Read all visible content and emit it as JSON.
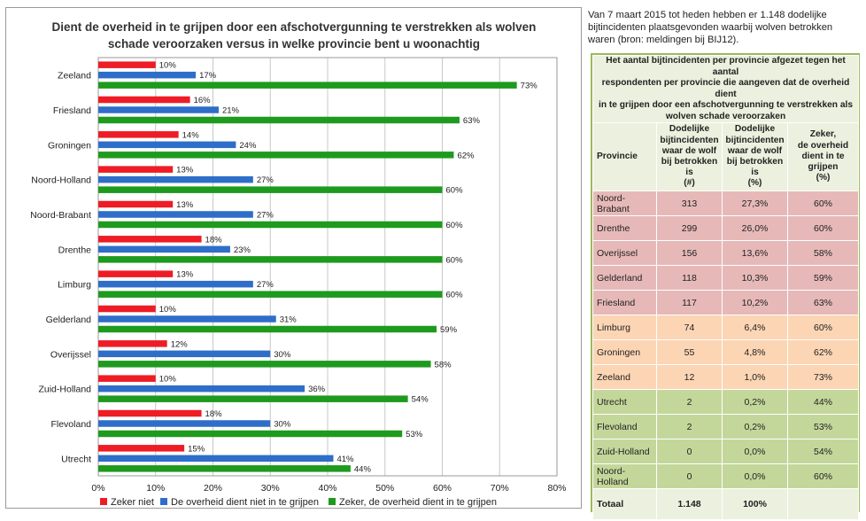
{
  "chart_data": {
    "type": "bar",
    "orientation": "horizontal",
    "title_lines": [
      "Dient de overheid in te grijpen door een afschotvergunning te verstrekken als wolven",
      "schade veroorzaken versus in welke provincie bent u woonachtig"
    ],
    "categories": [
      "Zeeland",
      "Friesland",
      "Groningen",
      "Noord-Holland",
      "Noord-Brabant",
      "Drenthe",
      "Limburg",
      "Gelderland",
      "Overijssel",
      "Zuid-Holland",
      "Flevoland",
      "Utrecht"
    ],
    "series": [
      {
        "name": "Zeker niet",
        "color": "#ee1c25",
        "values": [
          10,
          16,
          14,
          13,
          13,
          18,
          13,
          10,
          12,
          10,
          18,
          15
        ]
      },
      {
        "name": "De overheid dient niet in te grijpen",
        "color": "#2e6ec9",
        "values": [
          17,
          21,
          24,
          27,
          27,
          23,
          27,
          31,
          30,
          36,
          30,
          41
        ]
      },
      {
        "name": "Zeker, de overheid dient in te grijpen",
        "color": "#1e9a1e",
        "values": [
          73,
          63,
          62,
          60,
          60,
          60,
          60,
          59,
          58,
          54,
          53,
          44
        ]
      }
    ],
    "value_suffix": "%",
    "xlim": [
      0,
      80
    ],
    "x_ticks": [
      "0%",
      "10%",
      "20%",
      "30%",
      "40%",
      "50%",
      "60%",
      "70%",
      "80%"
    ],
    "x_tick_values": [
      0,
      10,
      20,
      30,
      40,
      50,
      60,
      70,
      80
    ],
    "grid": true,
    "legend_position": "bottom"
  },
  "side_note": {
    "lines": [
      "Van 7 maart 2015 tot heden hebben er 1.148 dodelijke",
      "bijtincidenten plaatsgevonden waarbij wolven betrokken",
      "waren (bron: meldingen bij BIJ12)."
    ]
  },
  "table": {
    "caption_lines": [
      "Het aantal bijtincidenten per provincie afgezet tegen het aantal",
      "respondenten per provincie die aangeven dat de overheid dient",
      "in te grijpen door een afschotvergunning te verstrekken als",
      "wolven schade veroorzaken"
    ],
    "headers": {
      "provincie": "Provincie",
      "col1": [
        "Dodelijke",
        "bijtincidenten",
        "waar de wolf",
        "bij betrokken is",
        "(#)"
      ],
      "col2": [
        "Dodelijke",
        "bijtincidenten",
        "waar de wolf",
        "bij betrokken is",
        "(%)"
      ],
      "col3": [
        "Zeker,",
        "de overheid",
        "dient in te",
        "grijpen",
        "(%)"
      ]
    },
    "rows": [
      {
        "provincie": "Noord-Brabant",
        "count": "313",
        "pct": "27,3%",
        "zeker": "60%",
        "color": "red"
      },
      {
        "provincie": "Drenthe",
        "count": "299",
        "pct": "26,0%",
        "zeker": "60%",
        "color": "red"
      },
      {
        "provincie": "Overijssel",
        "count": "156",
        "pct": "13,6%",
        "zeker": "58%",
        "color": "red"
      },
      {
        "provincie": "Gelderland",
        "count": "118",
        "pct": "10,3%",
        "zeker": "59%",
        "color": "red"
      },
      {
        "provincie": "Friesland",
        "count": "117",
        "pct": "10,2%",
        "zeker": "63%",
        "color": "red"
      },
      {
        "provincie": "Limburg",
        "count": "74",
        "pct": "6,4%",
        "zeker": "60%",
        "color": "orange"
      },
      {
        "provincie": "Groningen",
        "count": "55",
        "pct": "4,8%",
        "zeker": "62%",
        "color": "orange"
      },
      {
        "provincie": "Zeeland",
        "count": "12",
        "pct": "1,0%",
        "zeker": "73%",
        "color": "orange"
      },
      {
        "provincie": "Utrecht",
        "count": "2",
        "pct": "0,2%",
        "zeker": "44%",
        "color": "green"
      },
      {
        "provincie": "Flevoland",
        "count": "2",
        "pct": "0,2%",
        "zeker": "53%",
        "color": "green"
      },
      {
        "provincie": "Zuid-Holland",
        "count": "0",
        "pct": "0,0%",
        "zeker": "54%",
        "color": "green"
      },
      {
        "provincie": "Noord-Holland",
        "count": "0",
        "pct": "0,0%",
        "zeker": "60%",
        "color": "green"
      }
    ],
    "total": {
      "label": "Totaal",
      "count": "1.148",
      "pct": "100%",
      "zeker": ""
    }
  }
}
